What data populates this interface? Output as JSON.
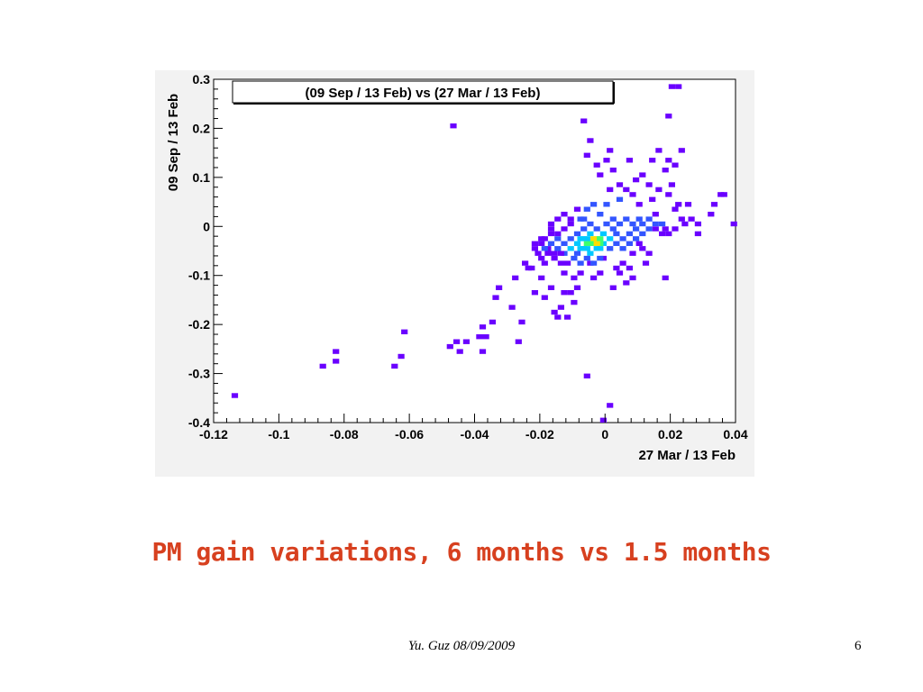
{
  "slide": {
    "caption": "PM gain variations, 6 months vs 1.5 months",
    "footer": "Yu. Guz 08/09/2009",
    "page_number": "6"
  },
  "colors": {
    "panel_bg": "#f2f2f2",
    "caption": "#d7401f",
    "hist_low": "#6a00ff",
    "hist_mid1": "#3355ff",
    "hist_mid2": "#00c8ff",
    "hist_mid3": "#3cff6e",
    "hist_high": "#ffdd00",
    "hist_peak": "#ff2000"
  },
  "chart_data": {
    "type": "heatmap",
    "title": "(09 Sep / 13 Feb) vs (27 Mar / 13 Feb)",
    "xlabel": "27 Mar / 13 Feb",
    "ylabel": "09 Sep / 13 Feb",
    "xlim": [
      -0.12,
      0.04
    ],
    "ylim": [
      -0.4,
      0.3
    ],
    "xticks": [
      "-0.12",
      "-0.1",
      "-0.08",
      "-0.06",
      "-0.04",
      "-0.02",
      "0",
      "0.02",
      "0.04"
    ],
    "yticks": [
      "0.3",
      "0.2",
      "0.1",
      "0",
      "-0.1",
      "-0.2",
      "-0.3",
      "-0.4"
    ],
    "grid": false,
    "legend": "none",
    "bins": [
      [
        -0.1135,
        -0.345,
        1
      ],
      [
        -0.0865,
        -0.285,
        1
      ],
      [
        -0.0825,
        -0.255,
        1
      ],
      [
        -0.0825,
        -0.275,
        1
      ],
      [
        -0.0615,
        -0.215,
        1
      ],
      [
        -0.0625,
        -0.265,
        1
      ],
      [
        -0.0645,
        -0.285,
        1
      ],
      [
        -0.0465,
        0.205,
        1
      ],
      [
        -0.0475,
        -0.245,
        1
      ],
      [
        -0.0455,
        -0.235,
        1
      ],
      [
        -0.0425,
        -0.235,
        1
      ],
      [
        -0.0445,
        -0.255,
        1
      ],
      [
        -0.0375,
        -0.205,
        1
      ],
      [
        -0.0385,
        -0.225,
        1
      ],
      [
        -0.0365,
        -0.225,
        1
      ],
      [
        -0.0375,
        -0.255,
        1
      ],
      [
        -0.0345,
        -0.195,
        1
      ],
      [
        -0.0335,
        -0.145,
        1
      ],
      [
        -0.0325,
        -0.125,
        1
      ],
      [
        -0.0285,
        -0.165,
        1
      ],
      [
        -0.0275,
        -0.105,
        1
      ],
      [
        -0.0255,
        -0.195,
        1
      ],
      [
        -0.0235,
        -0.085,
        1
      ],
      [
        -0.0265,
        -0.235,
        1
      ],
      [
        -0.0215,
        -0.135,
        1
      ],
      [
        -0.0195,
        -0.105,
        1
      ],
      [
        -0.0185,
        -0.075,
        1
      ],
      [
        -0.0185,
        -0.145,
        1
      ],
      [
        -0.0165,
        -0.125,
        1
      ],
      [
        -0.0155,
        -0.175,
        1
      ],
      [
        -0.0145,
        -0.185,
        1
      ],
      [
        -0.0135,
        -0.165,
        1
      ],
      [
        -0.0125,
        -0.135,
        1
      ],
      [
        -0.0115,
        -0.185,
        1
      ],
      [
        -0.0105,
        -0.135,
        1
      ],
      [
        -0.0095,
        -0.155,
        1
      ],
      [
        -0.0125,
        -0.095,
        1
      ],
      [
        -0.0095,
        -0.105,
        1
      ],
      [
        -0.0085,
        -0.125,
        1
      ],
      [
        -0.0075,
        -0.095,
        1
      ],
      [
        -0.0215,
        -0.035,
        1
      ],
      [
        -0.0215,
        -0.045,
        1
      ],
      [
        -0.0195,
        -0.025,
        1
      ],
      [
        -0.0175,
        -0.045,
        1
      ],
      [
        -0.0165,
        -0.015,
        1
      ],
      [
        -0.0165,
        0.005,
        1
      ],
      [
        -0.0145,
        0.015,
        1
      ],
      [
        -0.0125,
        0.025,
        1
      ],
      [
        -0.0105,
        0.005,
        1
      ],
      [
        -0.0085,
        0.035,
        1
      ],
      [
        -0.0075,
        0.015,
        2
      ],
      [
        -0.0055,
        0.035,
        2
      ],
      [
        -0.0035,
        0.045,
        2
      ],
      [
        -0.0015,
        0.025,
        2
      ],
      [
        0.0005,
        0.045,
        2
      ],
      [
        0.0025,
        0.015,
        2
      ],
      [
        0.0045,
        0.055,
        2
      ],
      [
        0.0015,
        0.075,
        1
      ],
      [
        0.0045,
        0.085,
        1
      ],
      [
        0.0065,
        0.075,
        1
      ],
      [
        0.0085,
        0.065,
        1
      ],
      [
        0.0095,
        0.095,
        1
      ],
      [
        0.0115,
        0.105,
        1
      ],
      [
        0.0105,
        0.045,
        1
      ],
      [
        0.0135,
        0.085,
        1
      ],
      [
        0.0145,
        0.055,
        1
      ],
      [
        0.0155,
        0.025,
        1
      ],
      [
        0.0165,
        0.075,
        1
      ],
      [
        0.0185,
        0.115,
        1
      ],
      [
        0.0195,
        0.065,
        1
      ],
      [
        0.0205,
        0.085,
        1
      ],
      [
        0.0215,
        0.035,
        1
      ],
      [
        0.0225,
        0.045,
        1
      ],
      [
        0.0235,
        0.015,
        1
      ],
      [
        0.0255,
        0.045,
        1
      ],
      [
        0.0185,
        -0.005,
        1
      ],
      [
        0.0195,
        -0.015,
        1
      ],
      [
        0.0215,
        -0.005,
        1
      ],
      [
        0.0245,
        0.005,
        1
      ],
      [
        0.0265,
        0.015,
        1
      ],
      [
        0.0145,
        0.135,
        1
      ],
      [
        0.0165,
        0.155,
        1
      ],
      [
        0.0195,
        0.135,
        1
      ],
      [
        0.0215,
        0.125,
        1
      ],
      [
        0.0235,
        0.155,
        1
      ],
      [
        0.0075,
        0.135,
        1
      ],
      [
        0.0025,
        0.115,
        1
      ],
      [
        0.0005,
        0.135,
        1
      ],
      [
        -0.0025,
        0.125,
        1
      ],
      [
        -0.0015,
        0.105,
        1
      ],
      [
        0.0015,
        0.155,
        1
      ],
      [
        -0.0045,
        0.175,
        1
      ],
      [
        -0.0065,
        0.215,
        1
      ],
      [
        -0.0055,
        0.145,
        1
      ],
      [
        0.0205,
        0.285,
        1
      ],
      [
        0.0225,
        0.285,
        1
      ],
      [
        0.0195,
        0.225,
        1
      ],
      [
        0.0355,
        0.065,
        1
      ],
      [
        0.0365,
        0.065,
        1
      ],
      [
        0.0335,
        0.045,
        1
      ],
      [
        0.0325,
        0.025,
        1
      ],
      [
        0.0285,
        0.005,
        1
      ],
      [
        0.0395,
        0.005,
        1
      ],
      [
        0.0285,
        -0.015,
        1
      ],
      [
        0.0085,
        -0.055,
        1
      ],
      [
        0.0105,
        -0.035,
        1
      ],
      [
        0.0115,
        -0.045,
        1
      ],
      [
        0.0125,
        -0.075,
        1
      ],
      [
        0.0135,
        -0.055,
        1
      ],
      [
        0.0055,
        -0.075,
        1
      ],
      [
        0.0045,
        -0.095,
        1
      ],
      [
        0.0075,
        -0.085,
        1
      ],
      [
        0.0065,
        -0.115,
        1
      ],
      [
        0.0085,
        -0.105,
        1
      ],
      [
        0.0025,
        -0.125,
        1
      ],
      [
        0.0035,
        -0.085,
        1
      ],
      [
        -0.0015,
        -0.095,
        1
      ],
      [
        -0.0035,
        -0.105,
        1
      ],
      [
        -0.0045,
        -0.075,
        1
      ],
      [
        -0.0005,
        -0.065,
        1
      ],
      [
        -0.0055,
        -0.305,
        1
      ],
      [
        -0.0005,
        -0.395,
        1
      ],
      [
        0.0015,
        -0.365,
        1
      ],
      [
        0.0185,
        -0.105,
        1
      ],
      [
        -0.0225,
        -0.085,
        1
      ],
      [
        -0.0245,
        -0.075,
        1
      ],
      [
        -0.0195,
        -0.065,
        1
      ],
      [
        -0.0155,
        -0.065,
        1
      ],
      [
        -0.0135,
        -0.075,
        1
      ],
      [
        -0.0205,
        -0.055,
        1
      ],
      [
        -0.0185,
        -0.045,
        2
      ],
      [
        -0.0165,
        -0.035,
        2
      ],
      [
        -0.0145,
        -0.025,
        2
      ],
      [
        -0.0145,
        -0.045,
        2
      ],
      [
        -0.0125,
        -0.035,
        2
      ],
      [
        -0.0125,
        -0.055,
        2
      ],
      [
        -0.0105,
        -0.045,
        3
      ],
      [
        -0.0105,
        -0.025,
        2
      ],
      [
        -0.0085,
        -0.015,
        2
      ],
      [
        -0.0085,
        -0.035,
        3
      ],
      [
        -0.0085,
        -0.055,
        2
      ],
      [
        -0.0065,
        -0.025,
        3
      ],
      [
        -0.0065,
        -0.045,
        3
      ],
      [
        -0.0065,
        -0.005,
        2
      ],
      [
        -0.0045,
        -0.035,
        4
      ],
      [
        -0.0045,
        -0.015,
        3
      ],
      [
        -0.0045,
        -0.055,
        3
      ],
      [
        -0.0025,
        -0.025,
        4
      ],
      [
        -0.0025,
        -0.045,
        3
      ],
      [
        -0.0035,
        -0.025,
        5
      ],
      [
        -0.0005,
        -0.035,
        3
      ],
      [
        -0.0005,
        -0.015,
        3
      ],
      [
        0.0015,
        -0.025,
        3
      ],
      [
        0.0015,
        -0.045,
        2
      ],
      [
        0.0035,
        -0.035,
        2
      ],
      [
        0.0035,
        -0.015,
        2
      ],
      [
        0.0055,
        -0.025,
        2
      ],
      [
        0.0055,
        -0.045,
        2
      ],
      [
        0.0075,
        -0.035,
        2
      ],
      [
        0.0075,
        -0.015,
        2
      ],
      [
        0.0095,
        -0.025,
        2
      ],
      [
        0.0095,
        -0.005,
        2
      ],
      [
        0.0115,
        -0.015,
        2
      ],
      [
        0.0115,
        0.005,
        2
      ],
      [
        0.0135,
        -0.005,
        2
      ],
      [
        0.0135,
        0.015,
        2
      ],
      [
        0.0155,
        -0.005,
        1
      ],
      [
        0.0155,
        0.005,
        2
      ],
      [
        0.0175,
        0.005,
        2
      ],
      [
        0.0175,
        -0.015,
        1
      ],
      [
        0.0045,
        0.005,
        2
      ],
      [
        0.0065,
        0.015,
        2
      ],
      [
        0.0085,
        0.005,
        2
      ],
      [
        0.0105,
        0.015,
        2
      ],
      [
        -0.0065,
        0.015,
        2
      ],
      [
        -0.0045,
        0.005,
        2
      ],
      [
        -0.0025,
        -0.005,
        2
      ],
      [
        0.0005,
        0.005,
        2
      ],
      [
        0.0025,
        -0.005,
        2
      ],
      [
        -0.0095,
        -0.065,
        2
      ],
      [
        -0.0075,
        -0.075,
        2
      ],
      [
        -0.0055,
        -0.065,
        2
      ],
      [
        -0.0035,
        -0.075,
        2
      ],
      [
        -0.0015,
        -0.065,
        2
      ],
      [
        -0.0115,
        -0.075,
        1
      ],
      [
        -0.0135,
        -0.055,
        1
      ],
      [
        -0.0155,
        -0.055,
        1
      ],
      [
        -0.0175,
        -0.055,
        1
      ],
      [
        -0.0195,
        -0.035,
        1
      ],
      [
        -0.0105,
        0.015,
        1
      ],
      [
        -0.0125,
        -0.005,
        1
      ],
      [
        -0.0145,
        -0.015,
        1
      ],
      [
        -0.0165,
        -0.005,
        1
      ],
      [
        -0.0185,
        -0.025,
        1
      ],
      [
        -0.0035,
        -0.035,
        4
      ],
      [
        -0.0015,
        -0.035,
        4
      ],
      [
        -0.0015,
        -0.025,
        4
      ],
      [
        -0.0055,
        -0.035,
        4
      ],
      [
        -0.0055,
        -0.025,
        3
      ],
      [
        -0.0025,
        -0.035,
        5
      ],
      [
        -0.0015,
        -0.045,
        3
      ],
      [
        -0.0055,
        -0.045,
        3
      ],
      [
        -0.0075,
        -0.025,
        3
      ],
      [
        -0.0075,
        -0.045,
        3
      ]
    ],
    "bin_size": [
      0.002,
      0.01
    ]
  }
}
